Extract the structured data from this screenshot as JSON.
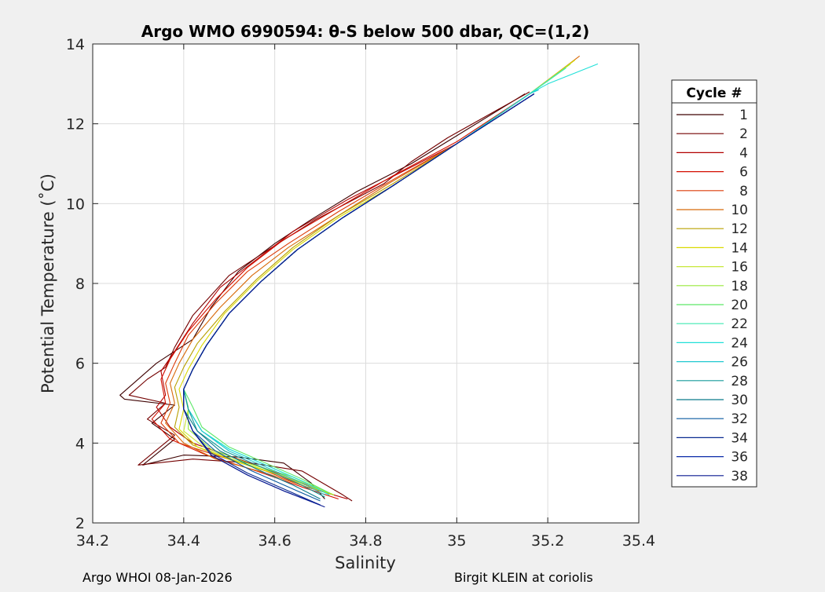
{
  "chart_data": {
    "type": "line",
    "title": "Argo WMO 6990594: θ-S below 500 dbar,  QC=(1,2)",
    "xlabel": "Salinity",
    "ylabel": "Potential Temperature (˚C)",
    "xlim": [
      34.2,
      35.4
    ],
    "ylim": [
      2,
      14
    ],
    "xticks": [
      "34.2",
      "34.4",
      "34.6",
      "34.8",
      "35",
      "35.2",
      "35.4"
    ],
    "yticks": [
      "2",
      "4",
      "6",
      "8",
      "10",
      "12",
      "14"
    ],
    "grid": true,
    "legend": {
      "title": "Cycle #",
      "placement": "outside-right",
      "entries": [
        "1",
        "2",
        "4",
        "6",
        "8",
        "10",
        "12",
        "14",
        "16",
        "18",
        "20",
        "22",
        "24",
        "26",
        "28",
        "30",
        "32",
        "34",
        "36",
        "38"
      ]
    },
    "colors": [
      "#3d0000",
      "#740000",
      "#b20000",
      "#d40f00",
      "#dc3a08",
      "#d86a0a",
      "#b8a000",
      "#d9d900",
      "#c8e83a",
      "#98e83a",
      "#5ce868",
      "#3ee8b0",
      "#20e0d8",
      "#20c8d0",
      "#159a9a",
      "#0a7a8a",
      "#0a5aa0",
      "#0a2a90",
      "#0a2aa8",
      "#0a1a90"
    ],
    "series": [
      {
        "name": "1",
        "x": [
          35.15,
          35.0,
          34.9,
          34.78,
          34.68,
          34.6,
          34.52,
          34.46,
          34.42,
          34.34,
          34.26,
          34.27,
          34.38,
          34.33,
          34.38,
          34.31,
          34.4,
          34.52,
          34.62,
          34.68,
          34.71
        ],
        "y": [
          12.75,
          11.7,
          11.0,
          10.3,
          9.6,
          9.0,
          8.3,
          7.4,
          6.6,
          6.0,
          5.2,
          5.1,
          4.95,
          4.5,
          4.1,
          3.45,
          3.7,
          3.65,
          3.5,
          3.0,
          2.6
        ]
      },
      {
        "name": "2",
        "x": [
          35.16,
          34.98,
          34.9,
          34.84,
          34.69,
          34.58,
          34.5,
          34.42,
          34.38,
          34.36,
          34.32,
          34.28,
          34.36,
          34.32,
          34.38,
          34.3,
          34.42,
          34.55,
          34.66,
          34.75,
          34.77
        ],
        "y": [
          12.8,
          11.65,
          11.05,
          10.5,
          9.6,
          8.8,
          8.2,
          7.2,
          6.4,
          5.9,
          5.6,
          5.2,
          5.0,
          4.6,
          4.2,
          3.45,
          3.6,
          3.5,
          3.3,
          2.7,
          2.55
        ]
      },
      {
        "name": "4",
        "x": [
          35.16,
          35.0,
          34.88,
          34.76,
          34.64,
          34.56,
          34.48,
          34.42,
          34.38,
          34.35,
          34.36,
          34.34,
          34.37,
          34.42,
          34.52,
          34.62,
          34.7,
          34.76
        ],
        "y": [
          12.75,
          11.5,
          10.8,
          10.1,
          9.3,
          8.6,
          7.9,
          7.0,
          6.3,
          5.8,
          5.2,
          4.9,
          4.4,
          4.0,
          3.6,
          3.2,
          2.8,
          2.6
        ]
      },
      {
        "name": "6",
        "x": [
          35.16,
          35.0,
          34.86,
          34.74,
          34.62,
          34.54,
          34.47,
          34.41,
          34.37,
          34.35,
          34.36,
          34.33,
          34.37,
          34.45,
          34.56,
          34.66,
          34.74
        ],
        "y": [
          12.75,
          11.55,
          10.7,
          9.9,
          9.1,
          8.4,
          7.6,
          6.8,
          6.1,
          5.6,
          5.0,
          4.6,
          4.1,
          3.7,
          3.3,
          2.9,
          2.6
        ]
      },
      {
        "name": "8",
        "x": [
          35.16,
          35.0,
          34.86,
          34.74,
          34.63,
          34.54,
          34.47,
          34.41,
          34.38,
          34.36,
          34.37,
          34.35,
          34.39,
          34.47,
          34.58,
          34.67,
          34.73
        ],
        "y": [
          12.75,
          11.5,
          10.6,
          9.8,
          9.0,
          8.3,
          7.5,
          6.7,
          6.0,
          5.5,
          5.0,
          4.5,
          4.0,
          3.7,
          3.3,
          2.9,
          2.7
        ]
      },
      {
        "name": "10",
        "x": [
          35.27,
          35.16,
          35.0,
          34.85,
          34.74,
          34.63,
          34.55,
          34.48,
          34.42,
          34.39,
          34.37,
          34.38,
          34.36,
          34.4,
          34.47,
          34.58,
          34.67,
          34.73
        ],
        "y": [
          13.7,
          12.75,
          11.5,
          10.5,
          9.7,
          8.9,
          8.2,
          7.4,
          6.6,
          6.0,
          5.5,
          5.0,
          4.5,
          4.0,
          3.6,
          3.25,
          2.9,
          2.7
        ]
      },
      {
        "name": "12",
        "x": [
          35.26,
          35.16,
          35.0,
          34.86,
          34.74,
          34.64,
          34.56,
          34.49,
          34.43,
          34.4,
          34.38,
          34.39,
          34.38,
          34.42,
          34.5,
          34.6,
          34.68,
          34.73
        ],
        "y": [
          13.6,
          12.75,
          11.5,
          10.5,
          9.7,
          8.9,
          8.1,
          7.3,
          6.5,
          5.9,
          5.4,
          4.9,
          4.4,
          3.95,
          3.6,
          3.25,
          2.9,
          2.7
        ]
      },
      {
        "name": "14",
        "x": [
          35.26,
          35.16,
          35.0,
          34.86,
          34.74,
          34.64,
          34.56,
          34.49,
          34.44,
          34.41,
          34.39,
          34.4,
          34.39,
          34.43,
          34.51,
          34.61,
          34.69,
          34.73
        ],
        "y": [
          13.6,
          12.75,
          11.5,
          10.45,
          9.65,
          8.85,
          8.05,
          7.25,
          6.45,
          5.85,
          5.35,
          4.85,
          4.35,
          3.9,
          3.55,
          3.2,
          2.85,
          2.7
        ]
      },
      {
        "name": "16",
        "x": [
          35.25,
          35.16,
          35.0,
          34.86,
          34.75,
          34.65,
          34.57,
          34.5,
          34.45,
          34.42,
          34.4,
          34.41,
          34.4,
          34.45,
          34.53,
          34.63,
          34.7,
          34.73
        ],
        "y": [
          13.5,
          12.75,
          11.5,
          10.45,
          9.65,
          8.85,
          8.05,
          7.25,
          6.45,
          5.85,
          5.35,
          4.85,
          4.3,
          3.85,
          3.5,
          3.15,
          2.85,
          2.7
        ]
      },
      {
        "name": "18",
        "x": [
          35.25,
          35.16,
          35.0,
          34.86,
          34.75,
          34.65,
          34.57,
          34.5,
          34.45,
          34.42,
          34.4,
          34.41,
          34.41,
          34.46,
          34.54,
          34.64,
          34.7,
          34.73
        ],
        "y": [
          13.5,
          12.75,
          11.5,
          10.45,
          9.65,
          8.85,
          8.05,
          7.25,
          6.45,
          5.85,
          5.35,
          4.9,
          4.35,
          3.85,
          3.5,
          3.15,
          2.85,
          2.7
        ]
      },
      {
        "name": "20",
        "x": [
          35.24,
          35.16,
          35.0,
          34.86,
          34.75,
          34.65,
          34.57,
          34.5,
          34.45,
          34.42,
          34.4,
          34.42,
          34.44,
          34.5,
          34.58,
          34.66,
          34.72
        ],
        "y": [
          13.4,
          12.75,
          11.5,
          10.45,
          9.65,
          8.85,
          8.05,
          7.25,
          6.45,
          5.85,
          5.35,
          4.9,
          4.4,
          3.9,
          3.5,
          3.1,
          2.75
        ]
      },
      {
        "name": "22",
        "x": [
          35.24,
          35.16,
          35.0,
          34.86,
          34.75,
          34.65,
          34.57,
          34.5,
          34.45,
          34.42,
          34.4,
          34.41,
          34.44,
          34.5,
          34.58,
          34.66,
          34.72
        ],
        "y": [
          13.4,
          12.75,
          11.5,
          10.45,
          9.65,
          8.85,
          8.05,
          7.25,
          6.45,
          5.85,
          5.35,
          4.85,
          4.3,
          3.85,
          3.45,
          3.05,
          2.7
        ]
      },
      {
        "name": "24",
        "x": [
          35.31,
          35.2,
          35.16,
          35.0,
          34.86,
          34.75,
          34.65,
          34.57,
          34.5,
          34.45,
          34.42,
          34.4,
          34.41,
          34.44,
          34.5,
          34.58,
          34.66,
          34.72
        ],
        "y": [
          13.5,
          13.0,
          12.75,
          11.5,
          10.45,
          9.65,
          8.85,
          8.05,
          7.25,
          6.45,
          5.85,
          5.35,
          4.85,
          4.3,
          3.85,
          3.45,
          3.05,
          2.7
        ]
      },
      {
        "name": "26",
        "x": [
          35.18,
          35.16,
          35.0,
          34.86,
          34.75,
          34.65,
          34.57,
          34.5,
          34.45,
          34.42,
          34.4,
          34.41,
          34.44,
          34.5,
          34.58,
          34.66,
          34.71
        ],
        "y": [
          12.85,
          12.75,
          11.5,
          10.45,
          9.65,
          8.85,
          8.05,
          7.25,
          6.45,
          5.85,
          5.35,
          4.85,
          4.3,
          3.8,
          3.4,
          3.0,
          2.7
        ]
      },
      {
        "name": "28",
        "x": [
          35.17,
          35.0,
          34.86,
          34.75,
          34.65,
          34.57,
          34.5,
          34.45,
          34.42,
          34.4,
          34.41,
          34.43,
          34.49,
          34.57,
          34.65,
          34.71
        ],
        "y": [
          12.75,
          11.5,
          10.45,
          9.65,
          8.85,
          8.05,
          7.25,
          6.45,
          5.85,
          5.35,
          4.85,
          4.3,
          3.8,
          3.4,
          3.0,
          2.65
        ]
      },
      {
        "name": "30",
        "x": [
          35.17,
          35.0,
          34.86,
          34.75,
          34.65,
          34.57,
          34.5,
          34.45,
          34.42,
          34.4,
          34.4,
          34.43,
          34.48,
          34.56,
          34.64,
          34.7
        ],
        "y": [
          12.75,
          11.5,
          10.45,
          9.65,
          8.85,
          8.05,
          7.25,
          6.45,
          5.85,
          5.35,
          4.85,
          4.3,
          3.8,
          3.35,
          2.95,
          2.6
        ]
      },
      {
        "name": "32",
        "x": [
          35.17,
          35.0,
          34.86,
          34.75,
          34.65,
          34.57,
          34.5,
          34.45,
          34.42,
          34.4,
          34.4,
          34.42,
          34.47,
          34.55,
          34.63,
          34.7
        ],
        "y": [
          12.75,
          11.5,
          10.45,
          9.65,
          8.85,
          8.05,
          7.25,
          6.45,
          5.85,
          5.35,
          4.85,
          4.3,
          3.8,
          3.3,
          2.9,
          2.55
        ]
      },
      {
        "name": "34",
        "x": [
          35.17,
          35.0,
          34.86,
          34.75,
          34.65,
          34.57,
          34.5,
          34.45,
          34.42,
          34.4,
          34.4,
          34.42,
          34.46,
          34.54,
          34.62,
          34.7
        ],
        "y": [
          12.75,
          11.5,
          10.45,
          9.65,
          8.85,
          8.05,
          7.25,
          6.45,
          5.85,
          5.35,
          4.85,
          4.3,
          3.75,
          3.25,
          2.85,
          2.45
        ]
      },
      {
        "name": "36",
        "x": [
          35.17,
          35.0,
          34.86,
          34.75,
          34.65,
          34.57,
          34.5,
          34.45,
          34.42,
          34.4,
          34.4,
          34.42,
          34.46,
          34.54,
          34.62,
          34.7
        ],
        "y": [
          12.75,
          11.5,
          10.45,
          9.65,
          8.85,
          8.05,
          7.25,
          6.45,
          5.85,
          5.35,
          4.85,
          4.3,
          3.7,
          3.2,
          2.8,
          2.45
        ]
      },
      {
        "name": "38",
        "x": [
          35.17,
          35.0,
          34.86,
          34.75,
          34.65,
          34.57,
          34.5,
          34.45,
          34.42,
          34.4,
          34.4,
          34.42,
          34.46,
          34.54,
          34.62,
          34.71
        ],
        "y": [
          12.75,
          11.5,
          10.45,
          9.65,
          8.85,
          8.05,
          7.25,
          6.45,
          5.85,
          5.35,
          4.85,
          4.3,
          3.7,
          3.2,
          2.8,
          2.4
        ]
      }
    ]
  },
  "footer": {
    "left": "Argo WHOI 08-Jan-2026",
    "right": "Birgit KLEIN at coriolis"
  }
}
